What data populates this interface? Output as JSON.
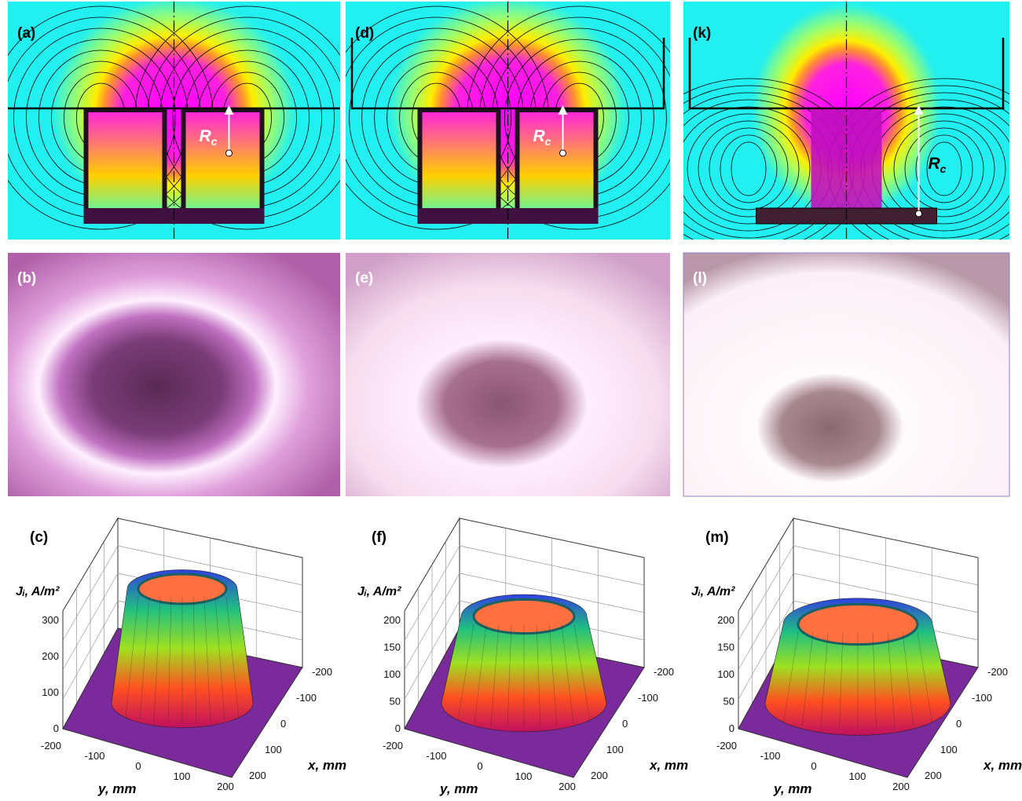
{
  "field_maps": [
    {
      "label": "(a)",
      "rc": {
        "symbol": "R",
        "subscript": "c"
      }
    },
    {
      "label": "(d)",
      "rc": {
        "symbol": "R",
        "subscript": "c"
      }
    },
    {
      "label": "(k)",
      "rc": {
        "symbol": "R",
        "subscript": "c"
      }
    }
  ],
  "photos": [
    {
      "label": "(b)"
    },
    {
      "label": "(e)"
    },
    {
      "label": "(l)"
    }
  ],
  "plots": [
    {
      "label": "(c)",
      "z_label": "Jᵢ, A/m²",
      "z_ticks": [
        0,
        100,
        200,
        300
      ],
      "x_label": "x, mm",
      "x_ticks": [
        -200,
        -100,
        0,
        100,
        200
      ],
      "y_label": "y, mm",
      "y_ticks": [
        -200,
        -100,
        0,
        100,
        200
      ]
    },
    {
      "label": "(f)",
      "z_label": "Jᵢ, A/m²",
      "z_ticks": [
        0,
        50,
        100,
        150,
        200
      ],
      "x_label": "x, mm",
      "x_ticks": [
        -200,
        -100,
        0,
        100,
        200
      ],
      "y_label": "y, mm",
      "y_ticks": [
        -200,
        -100,
        0,
        100,
        200
      ]
    },
    {
      "label": "(m)",
      "z_label": "Jᵢ, A/m²",
      "z_ticks": [
        0,
        50,
        100,
        150,
        200
      ],
      "x_label": "x, mm",
      "x_ticks": [
        -200,
        -100,
        0,
        100,
        200
      ],
      "y_label": "y, mm",
      "y_ticks": [
        -200,
        -100,
        0,
        100,
        200
      ]
    }
  ]
}
